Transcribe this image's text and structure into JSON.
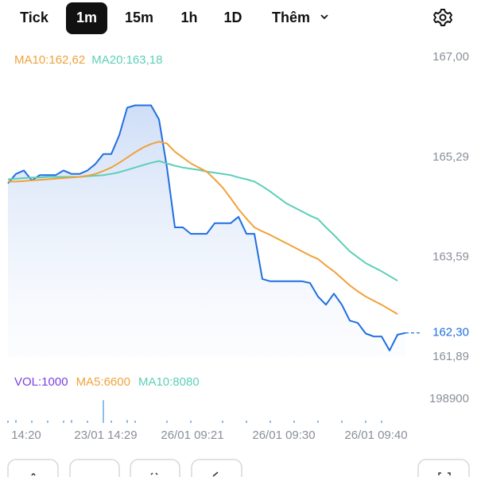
{
  "tabs": [
    "Tick",
    "1m",
    "15m",
    "1h",
    "1D",
    "Thêm"
  ],
  "active_tab": 1,
  "chart_data": [
    {
      "type": "line",
      "x": [
        0,
        1,
        2,
        3,
        4,
        5,
        6,
        7,
        8,
        9,
        10,
        11,
        12,
        13,
        14,
        15,
        16,
        17,
        18,
        19,
        20,
        21,
        22,
        23,
        24,
        25,
        26,
        27,
        28,
        29,
        30,
        31,
        32,
        33,
        34,
        35,
        36,
        37,
        38,
        39,
        40,
        41,
        42,
        43,
        44,
        45,
        46,
        47,
        48,
        49,
        50
      ],
      "xlim": [
        0,
        50
      ],
      "ylim": [
        161.89,
        167.0
      ],
      "yticks": [
        {
          "value": 167.0,
          "label": "167,00"
        },
        {
          "value": 165.29,
          "label": "165,29"
        },
        {
          "value": 163.59,
          "label": "163,59"
        },
        {
          "value": 161.89,
          "label": "161,89"
        }
      ],
      "series": [
        {
          "color": "#1f6fe0",
          "values": [
            164.85,
            165.01,
            165.07,
            164.9,
            164.99,
            164.99,
            164.99,
            165.07,
            165.01,
            165.01,
            165.07,
            165.18,
            165.35,
            165.35,
            165.67,
            166.14,
            166.18,
            166.18,
            166.18,
            165.94,
            165.12,
            164.1,
            164.1,
            163.99,
            163.99,
            163.99,
            164.17,
            164.17,
            164.17,
            164.28,
            163.99,
            163.99,
            163.22,
            163.18,
            163.18,
            163.18,
            163.18,
            163.18,
            163.15,
            162.92,
            162.78,
            162.97,
            162.78,
            162.51,
            162.47,
            162.29,
            162.24,
            162.24,
            162.0,
            162.27,
            162.3
          ]
        },
        {
          "name": "MA10:162,62",
          "color": "#f0a23a",
          "values": [
            164.88,
            164.88,
            164.89,
            164.9,
            164.91,
            164.92,
            164.93,
            164.94,
            164.95,
            164.96,
            164.98,
            165.01,
            165.06,
            165.12,
            165.2,
            165.29,
            165.38,
            165.46,
            165.52,
            165.56,
            165.53,
            165.39,
            165.29,
            165.19,
            165.12,
            165.05,
            164.92,
            164.78,
            164.6,
            164.41,
            164.25,
            164.1,
            164.03,
            163.97,
            163.9,
            163.83,
            163.76,
            163.69,
            163.62,
            163.56,
            163.45,
            163.35,
            163.23,
            163.11,
            163.01,
            162.92,
            162.85,
            162.78,
            162.7,
            162.62,
            null
          ]
        },
        {
          "name": "MA20:163,18",
          "color": "#5ccfb8",
          "values": [
            164.92,
            164.93,
            164.94,
            164.95,
            164.95,
            164.96,
            164.96,
            164.96,
            164.96,
            164.96,
            164.97,
            164.98,
            164.99,
            165.01,
            165.04,
            165.08,
            165.12,
            165.16,
            165.2,
            165.23,
            165.19,
            165.15,
            165.12,
            165.1,
            165.08,
            165.05,
            165.03,
            165.01,
            164.99,
            164.95,
            164.92,
            164.88,
            164.8,
            164.71,
            164.61,
            164.51,
            164.44,
            164.37,
            164.3,
            164.24,
            164.1,
            163.97,
            163.83,
            163.69,
            163.59,
            163.49,
            163.42,
            163.35,
            163.27,
            163.19,
            null
          ]
        }
      ],
      "current_price": {
        "value": 162.3,
        "label": "162,30"
      }
    },
    {
      "type": "bar",
      "x": [
        0,
        1,
        2,
        3,
        4,
        5,
        6,
        7,
        8,
        9,
        10,
        11,
        12,
        13,
        14,
        15,
        16,
        17,
        18,
        19,
        20,
        21,
        22,
        23,
        24,
        25,
        26,
        27,
        28,
        29,
        30,
        31,
        32,
        33,
        34,
        35,
        36,
        37,
        38,
        39,
        40,
        41,
        42,
        43,
        44,
        45,
        46,
        47,
        48,
        49,
        50
      ],
      "xlim": [
        0,
        50
      ],
      "xticks": [
        {
          "value": 2.3,
          "label": "14:20"
        },
        {
          "value": 12.3,
          "label": "23/01 14:29"
        },
        {
          "value": 23.2,
          "label": "26/01 09:21"
        },
        {
          "value": 34.7,
          "label": "26/01 09:30"
        },
        {
          "value": 46.3,
          "label": "26/01 09:40"
        }
      ],
      "ylim": [
        0,
        198900
      ],
      "yticks": [
        198900
      ],
      "bar_color": "#8fbcef",
      "series": [
        {
          "name": "VOL:1000",
          "color": "#7b3fe4",
          "values": [
            20000,
            25000,
            0,
            20000,
            0,
            20000,
            0,
            20000,
            25000,
            0,
            20000,
            0,
            190000,
            20000,
            0,
            25000,
            20000,
            0,
            0,
            0,
            20000,
            0,
            0,
            20000,
            0,
            0,
            0,
            20000,
            0,
            0,
            20000,
            0,
            0,
            20000,
            0,
            0,
            20000,
            0,
            0,
            20000,
            0,
            0,
            20000,
            0,
            0,
            20000,
            0,
            20000,
            0,
            0,
            1000
          ]
        }
      ],
      "legend": [
        {
          "label": "MA5:6600",
          "color": "#f0a23a"
        },
        {
          "label": "MA10:8080",
          "color": "#5ccfb8"
        }
      ]
    }
  ]
}
